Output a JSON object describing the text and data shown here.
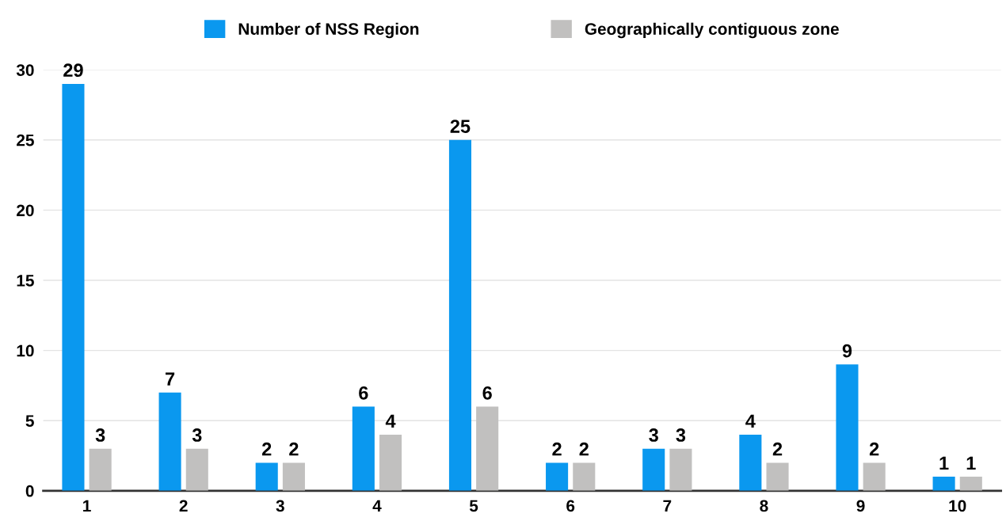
{
  "chart_data": {
    "type": "bar",
    "categories": [
      "1",
      "2",
      "3",
      "4",
      "5",
      "6",
      "7",
      "8",
      "9",
      "10"
    ],
    "series": [
      {
        "name": "Number of NSS Region",
        "color": "#0a98ef",
        "values": [
          29,
          7,
          2,
          6,
          25,
          2,
          3,
          4,
          9,
          1
        ]
      },
      {
        "name": "Geographically contiguous zone",
        "color": "#c1c0bf",
        "values": [
          3,
          3,
          2,
          4,
          6,
          2,
          3,
          2,
          2,
          1
        ]
      }
    ],
    "ylim": [
      0,
      30
    ],
    "yticks": [
      0,
      5,
      10,
      15,
      20,
      25,
      30
    ],
    "grid": "y",
    "legend": "top",
    "data_labels": true
  }
}
